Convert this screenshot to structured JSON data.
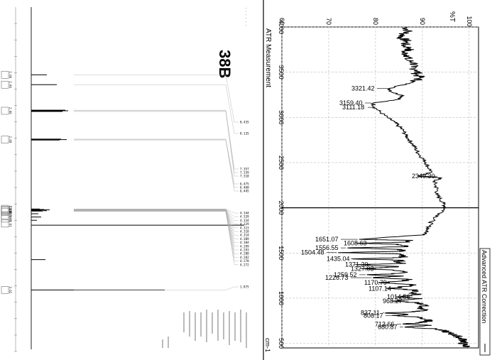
{
  "nmr": {
    "compound_label": "38B",
    "peak_labels": [
      "8.435",
      "8.135",
      "7.357",
      "7.339",
      "7.318",
      "6.475",
      "6.460",
      "6.445",
      "4.344",
      "4.339",
      "4.334",
      "4.329",
      "4.323",
      "4.318",
      "4.314",
      "4.309",
      "4.304",
      "4.299",
      "4.293",
      "4.288",
      "4.282",
      "4.278",
      "4.272",
      "1.875"
    ],
    "integrals": [
      "1.00",
      "1.00",
      "2.00",
      "2.00",
      "1.01",
      "1.02",
      "1.00",
      "1.03",
      "0.99",
      "1.00",
      "1.01",
      "3.02"
    ]
  },
  "chart_data": {
    "type": "line",
    "title": "ATR Measurement",
    "xlabel": "cm-1",
    "ylabel": "%T",
    "x_ticks": [
      4000,
      3500,
      3000,
      2500,
      2000,
      1500,
      1000,
      500
    ],
    "y_ticks": [
      60,
      70,
      80,
      90,
      100
    ],
    "xlim": [
      4000,
      450
    ],
    "ylim": [
      60,
      102
    ],
    "legend": "Advanced ATR Correction",
    "series": [
      {
        "values": [
          [
            4000,
            86.5
          ],
          [
            3960,
            87
          ],
          [
            3920,
            86
          ],
          [
            3880,
            85.5
          ],
          [
            3840,
            86.8
          ],
          [
            3800,
            86
          ],
          [
            3760,
            87.5
          ],
          [
            3720,
            85.8
          ],
          [
            3680,
            87.2
          ],
          [
            3640,
            86.5
          ],
          [
            3600,
            88.5
          ],
          [
            3560,
            87.6
          ],
          [
            3520,
            89
          ],
          [
            3480,
            88.8
          ],
          [
            3440,
            89.5
          ],
          [
            3400,
            88.5
          ],
          [
            3360,
            86
          ],
          [
            3321.42,
            83
          ],
          [
            3280,
            83.5
          ],
          [
            3240,
            86
          ],
          [
            3200,
            85
          ],
          [
            3159.4,
            79.5
          ],
          [
            3111.18,
            79.8
          ],
          [
            3060,
            81
          ],
          [
            3000,
            82.5
          ],
          [
            2950,
            84
          ],
          [
            2900,
            85
          ],
          [
            2850,
            86
          ],
          [
            2800,
            86.5
          ],
          [
            2750,
            87.2
          ],
          [
            2700,
            88
          ],
          [
            2650,
            88.6
          ],
          [
            2600,
            89.2
          ],
          [
            2550,
            90
          ],
          [
            2500,
            90.8
          ],
          [
            2450,
            91.2
          ],
          [
            2400,
            92
          ],
          [
            2349.3,
            89.2
          ],
          [
            2330,
            94.2
          ],
          [
            2300,
            92.5
          ],
          [
            2250,
            92.8
          ],
          [
            2200,
            93.2
          ],
          [
            2150,
            93
          ],
          [
            2100,
            93.8
          ],
          [
            2050,
            94.5
          ],
          [
            2000,
            95
          ],
          [
            1950,
            94.2
          ],
          [
            1900,
            93
          ],
          [
            1850,
            92
          ],
          [
            1800,
            91.5
          ],
          [
            1750,
            91
          ],
          [
            1700,
            90.5
          ],
          [
            1651.07,
            76.5
          ],
          [
            1640,
            88
          ],
          [
            1620,
            86.5
          ],
          [
            1608.63,
            76
          ],
          [
            1595,
            85
          ],
          [
            1570,
            87
          ],
          [
            1556.55,
            74
          ],
          [
            1540,
            85.5
          ],
          [
            1520,
            86
          ],
          [
            1504.48,
            72
          ],
          [
            1490,
            85
          ],
          [
            1470,
            86.5
          ],
          [
            1450,
            85.5
          ],
          [
            1435.04,
            75
          ],
          [
            1420,
            86
          ],
          [
            1400,
            84.5
          ],
          [
            1385,
            86.5
          ],
          [
            1371.3,
            75.8
          ],
          [
            1350,
            85
          ],
          [
            1340,
            82
          ],
          [
            1327.03,
            77
          ],
          [
            1310,
            84
          ],
          [
            1290,
            86.5
          ],
          [
            1270,
            84
          ],
          [
            1259.52,
            78.2
          ],
          [
            1245,
            86
          ],
          [
            1226.73,
            79.5
          ],
          [
            1210,
            87
          ],
          [
            1190,
            86
          ],
          [
            1170.79,
            80.8
          ],
          [
            1150,
            88
          ],
          [
            1130,
            86.5
          ],
          [
            1107.14,
            82.8
          ],
          [
            1090,
            89
          ],
          [
            1060,
            87.5
          ],
          [
            1040,
            89.5
          ],
          [
            1014.56,
            84.4
          ],
          [
            995,
            90
          ],
          [
            968.27,
            83.5
          ],
          [
            950,
            89
          ],
          [
            920,
            91
          ],
          [
            900,
            89
          ],
          [
            870,
            90.5
          ],
          [
            850,
            88.5
          ],
          [
            837.11,
            82.2
          ],
          [
            820,
            87
          ],
          [
            808.17,
            83.8
          ],
          [
            790,
            89
          ],
          [
            770,
            90.5
          ],
          [
            750,
            91.5
          ],
          [
            730,
            90
          ],
          [
            713.66,
            85.8
          ],
          [
            700,
            92
          ],
          [
            680.87,
            86.2
          ],
          [
            660,
            93
          ],
          [
            640,
            94.5
          ],
          [
            620,
            95.5
          ],
          [
            600,
            96.5
          ],
          [
            580,
            97.5
          ],
          [
            560,
            98
          ],
          [
            540,
            98.8
          ],
          [
            520,
            99
          ],
          [
            500,
            98.5
          ],
          [
            480,
            99.2
          ],
          [
            460,
            99.5
          ]
        ]
      }
    ],
    "annotations": [
      {
        "label": "3321.42",
        "x": 3321.42,
        "y": 83
      },
      {
        "label": "3159.40",
        "x": 3159.4,
        "y": 79.5
      },
      {
        "label": "3111.18",
        "x": 3111.18,
        "y": 79.8
      },
      {
        "label": "2349.30",
        "x": 2349.3,
        "y": 89.2
      },
      {
        "label": "1651.07",
        "x": 1651.07,
        "y": 76.5
      },
      {
        "label": "1608.63",
        "x": 1608.63,
        "y": 76
      },
      {
        "label": "1556.55",
        "x": 1556.55,
        "y": 74
      },
      {
        "label": "1504.48",
        "x": 1504.48,
        "y": 72
      },
      {
        "label": "1435.04",
        "x": 1435.04,
        "y": 75
      },
      {
        "label": "1371.30",
        "x": 1371.3,
        "y": 75.8
      },
      {
        "label": "1327.03",
        "x": 1327.03,
        "y": 77
      },
      {
        "label": "1259.52",
        "x": 1259.52,
        "y": 78.2
      },
      {
        "label": "1226.73",
        "x": 1226.73,
        "y": 79.5
      },
      {
        "label": "1170.79",
        "x": 1170.79,
        "y": 80.8
      },
      {
        "label": "1107.14",
        "x": 1107.14,
        "y": 82.8
      },
      {
        "label": "1014.56",
        "x": 1014.56,
        "y": 84.4
      },
      {
        "label": "968.27",
        "x": 968.27,
        "y": 83.5
      },
      {
        "label": "837.11",
        "x": 837.11,
        "y": 82.2
      },
      {
        "label": "808.17",
        "x": 808.17,
        "y": 83.8
      },
      {
        "label": "713.66",
        "x": 713.66,
        "y": 85.8
      },
      {
        "label": "680.87",
        "x": 680.87,
        "y": 86.2
      }
    ]
  }
}
